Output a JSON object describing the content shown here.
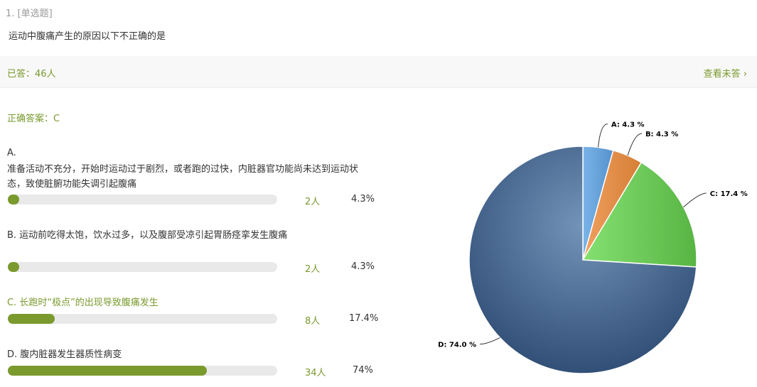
{
  "question": {
    "type": "1. [单选题]",
    "title": "运动中腹痛产生的原因以下不正确的是"
  },
  "answered": "已答：46人",
  "view_unanswered": "查看未答",
  "correct_answer": "正确答案：C",
  "options": [
    {
      "label": "A.",
      "text": "准备活动不充分，开始时运动过于剧烈，或者跑的过快，内脏器官功能尚未达到运动状",
      "text2": "态，致使脏腑功能失调引起腹痛",
      "count": "2人",
      "percent": "4.3%",
      "value": 4.3
    },
    {
      "label": "B. 运动前吃得太饱，饮水过多，以及腹部受凉引起胃肠痉挛发生腹痛",
      "count": "2人",
      "percent": "4.3%",
      "value": 4.3
    },
    {
      "label": "C. 长跑时“极点”的出现导致腹痛发生",
      "count": "8人",
      "percent": "17.4%",
      "value": 17.4
    },
    {
      "label": "D. 腹内脏器发生器质性病变",
      "count": "34人",
      "percent": "74%",
      "value": 74
    }
  ],
  "colors": {
    "accent": "#7a9a2e",
    "A": "#5b9bd5",
    "B": "#e08a3c",
    "C": "#6cc452",
    "D": "#4a6a94"
  },
  "chart_data": {
    "type": "pie",
    "categories": [
      "A",
      "B",
      "C",
      "D"
    ],
    "values": [
      4.3,
      4.3,
      17.4,
      74.0
    ],
    "labels": [
      "A: 4.3 %",
      "B: 4.3 %",
      "C: 17.4 %",
      "D: 74.0 %"
    ]
  }
}
